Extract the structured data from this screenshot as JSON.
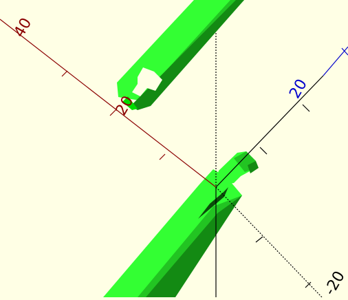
{
  "viewport": {
    "background": "#ffffe5",
    "colors": {
      "x_axis": "#8b0000",
      "y_axis": "#000000",
      "z_axis": "#0000cc",
      "model_light": "#33ff33",
      "model_mid": "#22c422",
      "model_dark": "#138a13",
      "model_face": "#00dd00"
    }
  },
  "axes": {
    "x_label_40": "40",
    "x_label_20": "20",
    "y_label_20": "20",
    "neg_label_20": "-20"
  }
}
